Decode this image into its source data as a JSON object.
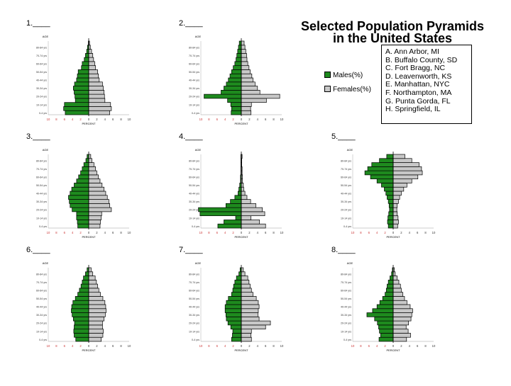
{
  "title_line1": "Selected Population Pyramids",
  "title_line2": "in the United States",
  "legend": {
    "males_label": "Males(%)",
    "females_label": "Females(%)",
    "male_color": "#1e8a1e",
    "female_color": "#c8c8c8"
  },
  "key": [
    "A. Ann Arbor, MI",
    "B. Buffalo County, SD",
    "C. Fort Bragg, NC",
    "D. Leavenworth, KS",
    "E. Manhattan, NYC",
    "F. Northampton, MA",
    "G. Punta Gorda, FL",
    "H. Springfield, IL"
  ],
  "chart_data": [
    {
      "type": "bar",
      "label": "1.____",
      "age_axis_title": "AGE",
      "x_axis_title": "PERCENT",
      "xlim": [
        -10,
        10
      ],
      "x_ticks": [
        10,
        8,
        6,
        4,
        2,
        0,
        2,
        4,
        6,
        8,
        10
      ],
      "age_groups": [
        "0-4 yrs",
        "5-9 yrs",
        "10-14 yrs",
        "15-19 yrs",
        "20-24 yrs",
        "25-29 yrs",
        "30-34 yrs",
        "35-39 yrs",
        "40-44 yrs",
        "45-49 yrs",
        "50-54 yrs",
        "55-59 yrs",
        "60-64 yrs",
        "65-69 yrs",
        "70-74 yrs",
        "75-79 yrs",
        "80-84 yrs",
        "85+ yrs"
      ],
      "series": [
        {
          "name": "Males(%)",
          "values": [
            5.8,
            6.2,
            6.0,
            3.3,
            3.4,
            3.6,
            3.8,
            3.5,
            3.0,
            2.8,
            2.6,
            1.8,
            1.6,
            1.1,
            0.8,
            0.5,
            0.3,
            0.1
          ]
        },
        {
          "name": "Females(%)",
          "values": [
            5.2,
            5.6,
            5.4,
            4.0,
            3.9,
            3.8,
            3.6,
            3.4,
            2.6,
            2.4,
            2.2,
            1.7,
            1.5,
            1.2,
            1.0,
            0.7,
            0.4,
            0.2
          ]
        }
      ]
    },
    {
      "type": "bar",
      "label": "2.____",
      "age_axis_title": "AGE",
      "x_axis_title": "PERCENT",
      "xlim": [
        -10,
        10
      ],
      "x_ticks": [
        10,
        8,
        6,
        4,
        2,
        0,
        2,
        4,
        6,
        8,
        10
      ],
      "age_groups": [
        "0-4 yrs",
        "5-9 yrs",
        "10-14 yrs",
        "15-19 yrs",
        "20-24 yrs",
        "25-29 yrs",
        "30-34 yrs",
        "35-39 yrs",
        "40-44 yrs",
        "45-49 yrs",
        "50-54 yrs",
        "55-59 yrs",
        "60-64 yrs",
        "65-69 yrs",
        "70-74 yrs",
        "75-79 yrs",
        "80-84 yrs",
        "85+ yrs"
      ],
      "series": [
        {
          "name": "Males(%)",
          "values": [
            2.5,
            2.4,
            2.6,
            3.4,
            9.2,
            5.0,
            4.3,
            3.7,
            3.2,
            2.8,
            2.4,
            2.0,
            1.6,
            1.3,
            1.1,
            0.9,
            0.7,
            0.5
          ]
        },
        {
          "name": "Females(%)",
          "values": [
            2.4,
            2.3,
            2.5,
            6.2,
            9.5,
            4.6,
            4.0,
            3.4,
            2.9,
            2.6,
            2.2,
            1.9,
            1.6,
            1.4,
            1.3,
            1.1,
            0.9,
            0.7
          ]
        }
      ]
    },
    {
      "type": "bar",
      "label": "3.____",
      "age_axis_title": "AGE",
      "x_axis_title": "PERCENT",
      "xlim": [
        -10,
        10
      ],
      "x_ticks": [
        10,
        8,
        6,
        4,
        2,
        0,
        2,
        4,
        6,
        8,
        10
      ],
      "age_groups": [
        "0-4 yrs",
        "5-9 yrs",
        "10-14 yrs",
        "15-19 yrs",
        "20-24 yrs",
        "25-29 yrs",
        "30-34 yrs",
        "35-39 yrs",
        "40-44 yrs",
        "45-49 yrs",
        "50-54 yrs",
        "55-59 yrs",
        "60-64 yrs",
        "65-69 yrs",
        "70-74 yrs",
        "75-79 yrs",
        "80-84 yrs",
        "85+ yrs"
      ],
      "series": [
        {
          "name": "Males(%)",
          "values": [
            2.7,
            2.8,
            3.0,
            3.0,
            4.1,
            4.6,
            4.8,
            5.0,
            4.6,
            4.2,
            3.6,
            3.0,
            2.5,
            2.0,
            1.6,
            1.2,
            0.7,
            0.4
          ]
        },
        {
          "name": "Females(%)",
          "values": [
            2.8,
            2.9,
            3.1,
            3.2,
            5.6,
            5.2,
            5.0,
            4.6,
            4.2,
            3.8,
            3.3,
            2.8,
            2.4,
            2.0,
            1.7,
            1.3,
            0.8,
            0.5
          ]
        }
      ]
    },
    {
      "type": "bar",
      "label": "4.____",
      "age_axis_title": "AGE",
      "x_axis_title": "PERCENT",
      "xlim": [
        -10,
        10
      ],
      "x_ticks": [
        10,
        8,
        6,
        4,
        2,
        0,
        2,
        4,
        6,
        8,
        10
      ],
      "age_groups": [
        "0-4 yrs",
        "5-9 yrs",
        "10-14 yrs",
        "15-19 yrs",
        "20-24 yrs",
        "25-29 yrs",
        "30-34 yrs",
        "35-39 yrs",
        "40-44 yrs",
        "45-49 yrs",
        "50-54 yrs",
        "55-59 yrs",
        "60-64 yrs",
        "65-69 yrs",
        "70-74 yrs",
        "75-79 yrs",
        "80-84 yrs",
        "85+ yrs"
      ],
      "series": [
        {
          "name": "Males(%)",
          "values": [
            5.8,
            4.3,
            1.4,
            10.2,
            10.6,
            3.8,
            2.7,
            1.6,
            0.8,
            0.6,
            0.4,
            0.2,
            0.2,
            0.1,
            0.1,
            0.1,
            0.1,
            0.1
          ]
        },
        {
          "name": "Females(%)",
          "values": [
            6.0,
            4.5,
            2.4,
            5.8,
            5.2,
            3.6,
            2.3,
            1.4,
            0.9,
            0.6,
            0.5,
            0.3,
            0.3,
            0.2,
            0.2,
            0.1,
            0.1,
            0.2
          ]
        }
      ]
    },
    {
      "type": "bar",
      "label": "5.____",
      "age_axis_title": "AGE",
      "x_axis_title": "PERCENT",
      "xlim": [
        -10,
        10
      ],
      "x_ticks": [
        10,
        8,
        6,
        4,
        2,
        0,
        2,
        4,
        6,
        8,
        10
      ],
      "age_groups": [
        "0-4 yrs",
        "5-9 yrs",
        "10-14 yrs",
        "15-19 yrs",
        "20-24 yrs",
        "25-29 yrs",
        "30-34 yrs",
        "35-39 yrs",
        "40-44 yrs",
        "45-49 yrs",
        "50-54 yrs",
        "55-59 yrs",
        "60-64 yrs",
        "65-69 yrs",
        "70-74 yrs",
        "75-79 yrs",
        "80-84 yrs",
        "85+ yrs"
      ],
      "series": [
        {
          "name": "Males(%)",
          "values": [
            1.2,
            1.4,
            1.3,
            1.1,
            0.9,
            1.0,
            1.2,
            1.5,
            1.8,
            2.2,
            2.9,
            4.0,
            5.6,
            7.0,
            6.3,
            5.3,
            3.4,
            1.6
          ]
        },
        {
          "name": "Females(%)",
          "values": [
            1.1,
            1.3,
            1.2,
            1.0,
            0.9,
            1.0,
            1.3,
            1.6,
            2.0,
            2.6,
            3.4,
            4.6,
            6.1,
            7.2,
            7.0,
            6.4,
            4.6,
            2.9
          ]
        }
      ]
    },
    {
      "type": "bar",
      "label": "6.____",
      "age_axis_title": "AGE",
      "x_axis_title": "PERCENT",
      "xlim": [
        -10,
        10
      ],
      "x_ticks": [
        10,
        8,
        6,
        4,
        2,
        0,
        2,
        4,
        6,
        8,
        10
      ],
      "age_groups": [
        "0-4 yrs",
        "5-9 yrs",
        "10-14 yrs",
        "15-19 yrs",
        "20-24 yrs",
        "25-29 yrs",
        "30-34 yrs",
        "35-39 yrs",
        "40-44 yrs",
        "45-49 yrs",
        "50-54 yrs",
        "55-59 yrs",
        "60-64 yrs",
        "65-69 yrs",
        "70-74 yrs",
        "75-79 yrs",
        "80-84 yrs",
        "85+ yrs"
      ],
      "series": [
        {
          "name": "Males(%)",
          "values": [
            3.2,
            3.6,
            3.7,
            3.6,
            3.5,
            3.8,
            4.1,
            4.3,
            4.2,
            3.9,
            3.3,
            2.7,
            2.3,
            1.9,
            1.6,
            1.3,
            0.8,
            0.4
          ]
        },
        {
          "name": "Females(%)",
          "values": [
            3.1,
            3.5,
            3.6,
            3.4,
            3.4,
            3.8,
            4.1,
            4.3,
            4.2,
            4.0,
            3.5,
            2.9,
            2.5,
            2.2,
            1.9,
            1.6,
            1.0,
            0.6
          ]
        }
      ]
    },
    {
      "type": "bar",
      "label": "7.____",
      "age_axis_title": "AGE",
      "x_axis_title": "PERCENT",
      "xlim": [
        -10,
        10
      ],
      "x_ticks": [
        10,
        8,
        6,
        4,
        2,
        0,
        2,
        4,
        6,
        8,
        10
      ],
      "age_groups": [
        "0-4 yrs",
        "5-9 yrs",
        "10-14 yrs",
        "15-19 yrs",
        "20-24 yrs",
        "25-29 yrs",
        "30-34 yrs",
        "35-39 yrs",
        "40-44 yrs",
        "45-49 yrs",
        "50-54 yrs",
        "55-59 yrs",
        "60-64 yrs",
        "65-69 yrs",
        "70-74 yrs",
        "75-79 yrs",
        "80-84 yrs",
        "85+ yrs"
      ],
      "series": [
        {
          "name": "Males(%)",
          "values": [
            2.4,
            2.2,
            2.1,
            2.6,
            3.3,
            3.7,
            3.8,
            4.0,
            4.0,
            3.7,
            3.2,
            2.4,
            2.1,
            1.9,
            1.6,
            1.2,
            0.6,
            0.3
          ]
        },
        {
          "name": "Females(%)",
          "values": [
            2.5,
            2.4,
            2.5,
            6.0,
            7.2,
            4.4,
            4.1,
            4.2,
            4.4,
            4.2,
            3.7,
            2.9,
            2.5,
            2.2,
            1.9,
            1.6,
            0.9,
            0.5
          ]
        }
      ]
    },
    {
      "type": "bar",
      "label": "8.____",
      "age_axis_title": "AGE",
      "x_axis_title": "PERCENT",
      "xlim": [
        -10,
        10
      ],
      "x_ticks": [
        10,
        8,
        6,
        4,
        2,
        0,
        2,
        4,
        6,
        8,
        10
      ],
      "age_groups": [
        "0-4 yrs",
        "5-9 yrs",
        "10-14 yrs",
        "15-19 yrs",
        "20-24 yrs",
        "25-29 yrs",
        "30-34 yrs",
        "35-39 yrs",
        "40-44 yrs",
        "45-49 yrs",
        "50-54 yrs",
        "55-59 yrs",
        "60-64 yrs",
        "65-69 yrs",
        "70-74 yrs",
        "75-79 yrs",
        "80-84 yrs",
        "85+ yrs"
      ],
      "series": [
        {
          "name": "Males(%)",
          "values": [
            3.5,
            3.1,
            3.4,
            3.6,
            3.9,
            4.6,
            6.5,
            5.1,
            4.0,
            3.3,
            2.6,
            2.0,
            1.7,
            1.5,
            1.2,
            0.8,
            0.4,
            0.2
          ]
        },
        {
          "name": "Females(%)",
          "values": [
            3.3,
            4.3,
            3.7,
            3.2,
            3.8,
            4.4,
            4.6,
            4.8,
            4.2,
            3.4,
            2.8,
            2.4,
            2.0,
            1.8,
            1.4,
            1.0,
            0.5,
            0.3
          ]
        }
      ]
    }
  ]
}
